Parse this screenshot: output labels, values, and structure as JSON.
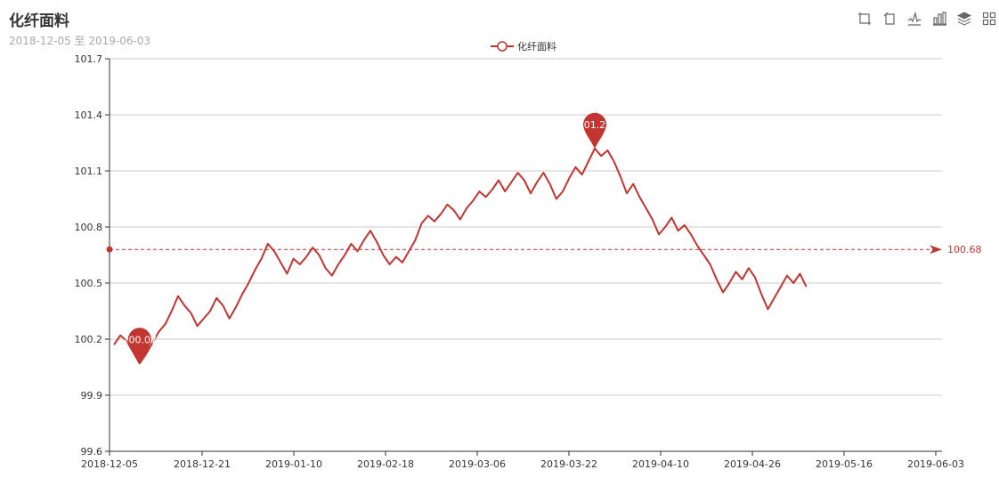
{
  "header": {
    "title": "化纤面料",
    "subtitle": "2018-12-05 至 2019-06-03"
  },
  "toolbox": [
    {
      "icon": "zoom-icon"
    },
    {
      "icon": "zoom-reset-icon"
    },
    {
      "icon": "line-chart-icon"
    },
    {
      "icon": "bar-chart-icon"
    },
    {
      "icon": "stack-icon"
    },
    {
      "icon": "tiled-icon"
    }
  ],
  "colors": {
    "series": "#c23531",
    "grid": "#cccccc",
    "axis": "#333333"
  },
  "chart_data": {
    "type": "line",
    "title": "化纤面料",
    "subtitle": "2018-12-05 至 2019-06-03",
    "legend": [
      "化纤面料"
    ],
    "legend_position": "top-center",
    "grid": true,
    "ylim": [
      99.6,
      101.7
    ],
    "yticks": [
      "99.6",
      "99.9",
      "100.2",
      "100.5",
      "100.8",
      "101.1",
      "101.4",
      "101.7"
    ],
    "xticks": [
      "2018-12-05",
      "2018-12-21",
      "2019-01-10",
      "2019-02-18",
      "2019-03-06",
      "2019-03-22",
      "2019-04-10",
      "2019-04-26",
      "2019-05-16",
      "2019-06-03"
    ],
    "series": [
      {
        "name": "化纤面料",
        "values": [
          100.17,
          100.22,
          100.19,
          100.13,
          100.07,
          100.12,
          100.18,
          100.24,
          100.28,
          100.35,
          100.43,
          100.38,
          100.34,
          100.27,
          100.31,
          100.35,
          100.42,
          100.38,
          100.31,
          100.37,
          100.44,
          100.5,
          100.57,
          100.63,
          100.71,
          100.67,
          100.61,
          100.55,
          100.63,
          100.6,
          100.64,
          100.69,
          100.65,
          100.58,
          100.54,
          100.6,
          100.65,
          100.71,
          100.67,
          100.73,
          100.78,
          100.72,
          100.65,
          100.6,
          100.64,
          100.61,
          100.67,
          100.73,
          100.82,
          100.86,
          100.83,
          100.87,
          100.92,
          100.89,
          100.84,
          100.9,
          100.94,
          100.99,
          100.96,
          101.0,
          101.05,
          100.99,
          101.04,
          101.09,
          101.05,
          100.98,
          101.04,
          101.09,
          101.03,
          100.95,
          100.99,
          101.06,
          101.12,
          101.08,
          101.15,
          101.22,
          101.18,
          101.21,
          101.15,
          101.07,
          100.98,
          101.03,
          100.96,
          100.9,
          100.84,
          100.76,
          100.8,
          100.85,
          100.78,
          100.81,
          100.76,
          100.7,
          100.65,
          100.6,
          100.52,
          100.45,
          100.5,
          100.56,
          100.52,
          100.58,
          100.53,
          100.44,
          100.36,
          100.42,
          100.48,
          100.54,
          100.5,
          100.55,
          100.48
        ]
      }
    ],
    "mark_points": [
      {
        "type": "min",
        "value": "100.07"
      },
      {
        "type": "max",
        "value": "101.22"
      }
    ],
    "mark_line": {
      "type": "average",
      "value": "100.68"
    }
  }
}
